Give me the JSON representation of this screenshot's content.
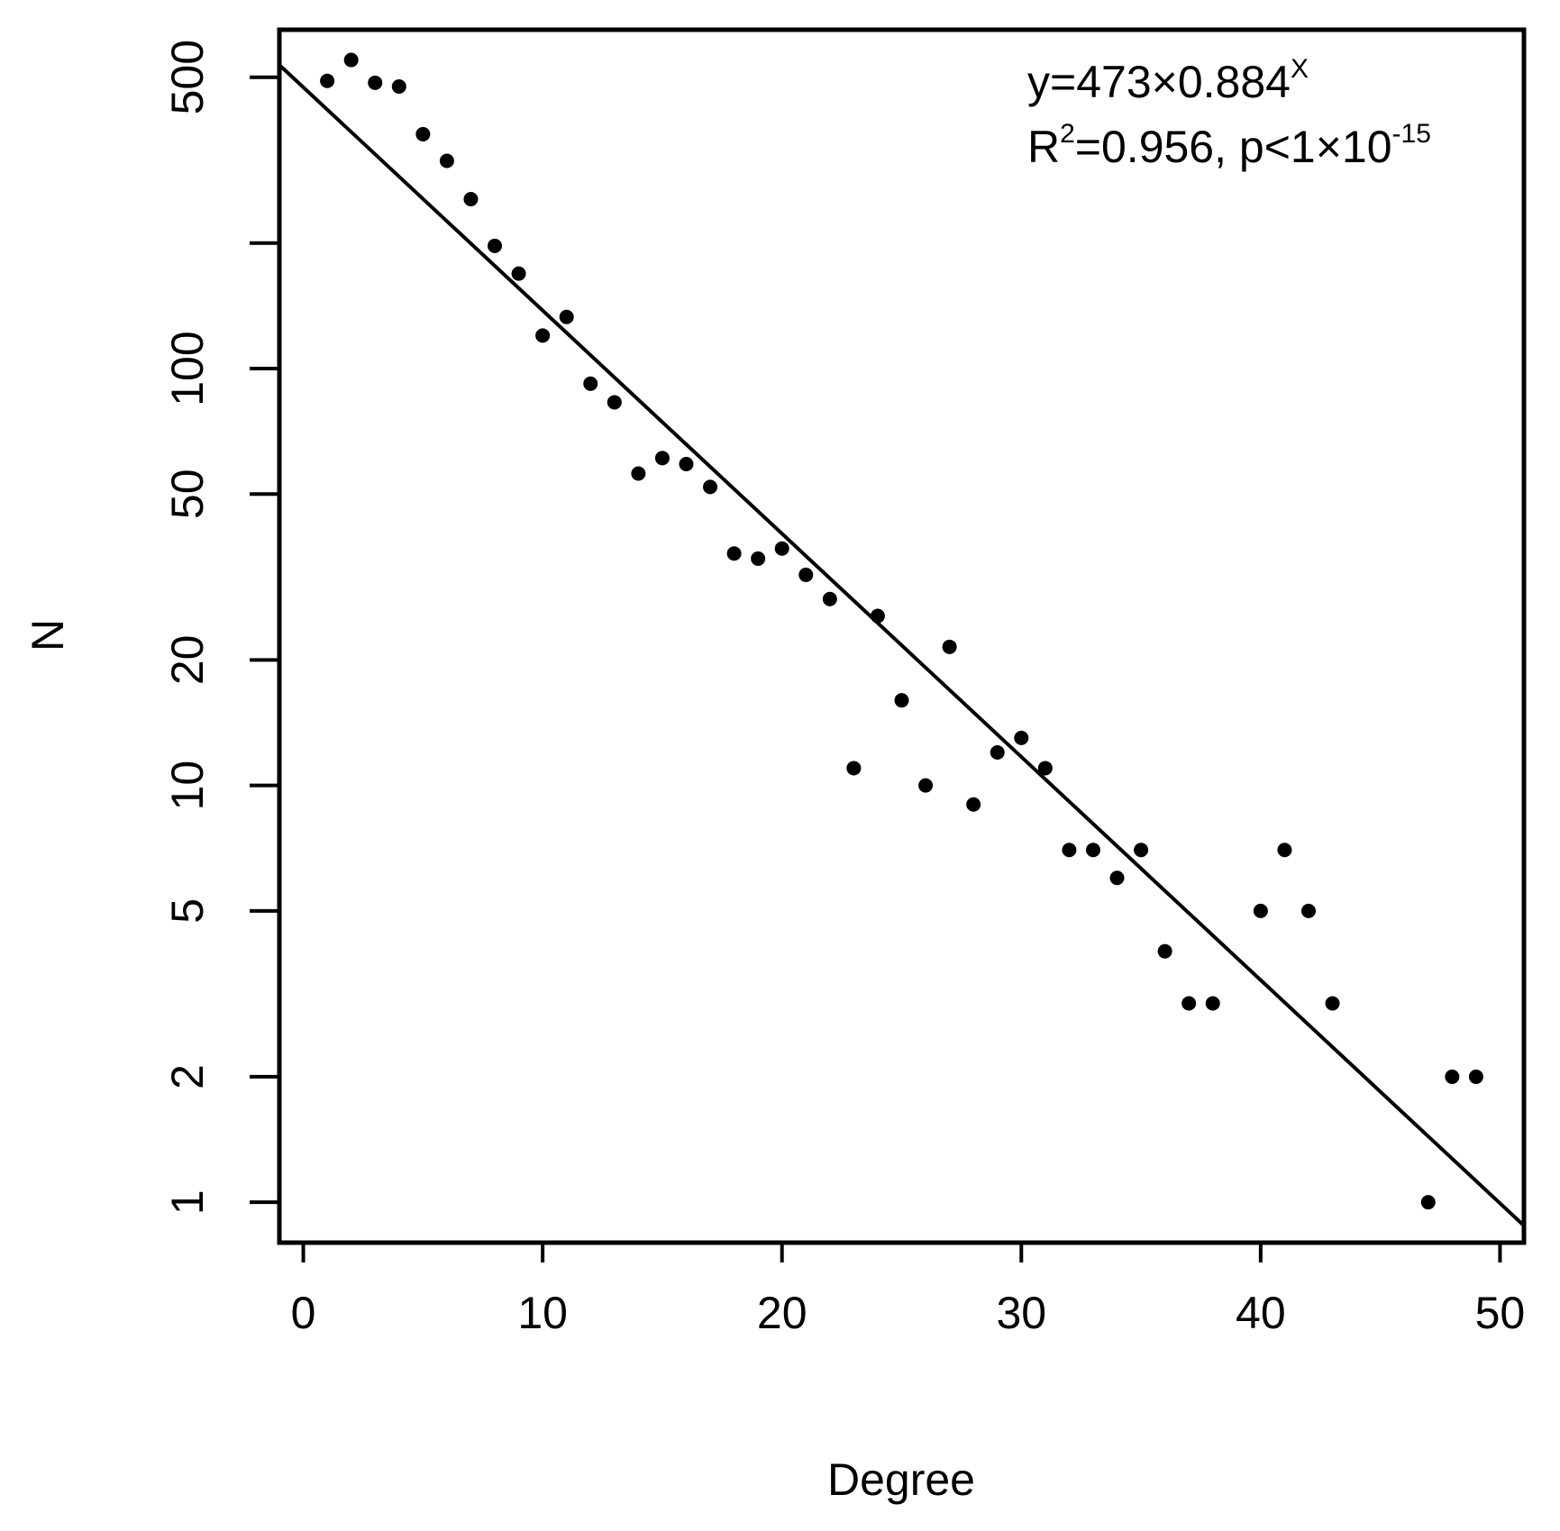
{
  "chart_data": {
    "type": "scatter",
    "title": "",
    "xlabel": "Degree",
    "ylabel": "N",
    "y_scale": "log",
    "xlim": [
      -1,
      51
    ],
    "ylim": [
      0.8,
      650
    ],
    "x_ticks": [
      0,
      10,
      20,
      30,
      40,
      50
    ],
    "y_ticks": [
      1,
      2,
      5,
      10,
      20,
      50,
      100,
      200,
      500
    ],
    "y_tick_labels": [
      "1",
      "2",
      "5",
      "10",
      "20",
      "50",
      "100",
      "",
      "500"
    ],
    "grid": false,
    "points": {
      "x": [
        1,
        2,
        3,
        4,
        5,
        6,
        7,
        8,
        9,
        10,
        11,
        12,
        13,
        14,
        15,
        16,
        17,
        18,
        19,
        20,
        21,
        22,
        23,
        24,
        25,
        26,
        27,
        28,
        29,
        30,
        31,
        32,
        33,
        34,
        35,
        36,
        37,
        38,
        40,
        41,
        42,
        43,
        47,
        48,
        49
      ],
      "y": [
        490,
        550,
        485,
        475,
        365,
        315,
        255,
        197,
        169,
        120,
        133,
        92,
        83,
        56,
        61,
        59,
        52,
        36,
        35,
        37,
        32,
        28,
        11,
        25.5,
        16,
        10,
        21.5,
        9,
        12,
        13,
        11,
        7,
        7,
        6,
        7,
        4,
        3,
        3,
        5,
        7,
        5,
        3,
        1,
        2,
        2
      ]
    },
    "fit": {
      "a": 473,
      "b": 0.884,
      "equation_prefix": "y=473×0.884",
      "equation_exponent": "X",
      "r2_prefix": "R",
      "r2_sup": "2",
      "r2_middle": "=0.956, p<1×10",
      "r2_exponent": "-15"
    }
  }
}
